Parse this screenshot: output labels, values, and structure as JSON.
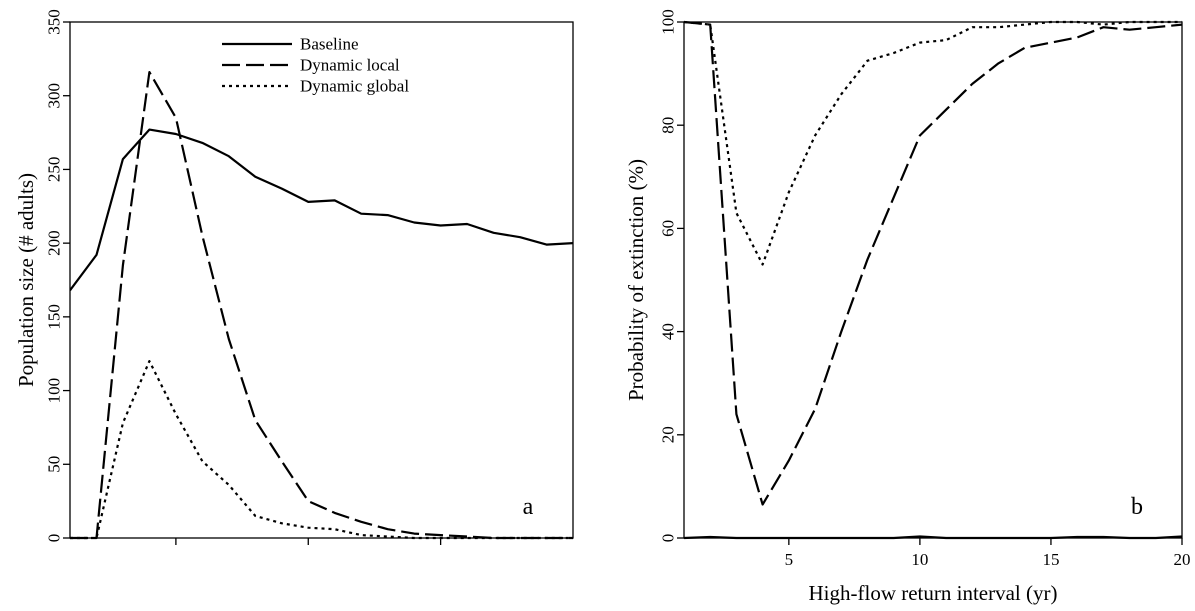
{
  "chart_data": [
    {
      "type": "line",
      "panel_label": "a",
      "xlabel": "",
      "ylabel": "Population size (# adults)",
      "ylim": [
        0,
        350
      ],
      "yticks": [
        0,
        50,
        100,
        150,
        200,
        250,
        300,
        350
      ],
      "xlim": [
        1,
        20
      ],
      "xticks": [
        5,
        10,
        15
      ],
      "xticklabels_shown": false,
      "legend": {
        "position": "top-center",
        "entries": [
          "Baseline",
          "Dynamic local",
          "Dynamic global"
        ]
      },
      "x": [
        1,
        2,
        3,
        4,
        5,
        6,
        7,
        8,
        9,
        10,
        11,
        12,
        13,
        14,
        15,
        16,
        17,
        18,
        19,
        20
      ],
      "series": [
        {
          "name": "Baseline",
          "style": "solid",
          "values": [
            168,
            192,
            257,
            277,
            274,
            268,
            259,
            245,
            237,
            228,
            229,
            220,
            219,
            214,
            212,
            213,
            207,
            204,
            199,
            200
          ]
        },
        {
          "name": "Dynamic local",
          "style": "dashed",
          "values": [
            0,
            0,
            185,
            316,
            285,
            205,
            135,
            80,
            52,
            25,
            17,
            11,
            6,
            3,
            2,
            1,
            0,
            0,
            0,
            0
          ]
        },
        {
          "name": "Dynamic global",
          "style": "dotted",
          "values": [
            0,
            0,
            78,
            120,
            84,
            52,
            36,
            15,
            10,
            7,
            6,
            2,
            1,
            0,
            0,
            0,
            0,
            0,
            0,
            0
          ]
        }
      ]
    },
    {
      "type": "line",
      "panel_label": "b",
      "xlabel": "High-flow return interval (yr)",
      "ylabel": "Probability of extinction (%)",
      "ylim": [
        0,
        100
      ],
      "yticks": [
        0,
        20,
        40,
        60,
        80,
        100
      ],
      "xlim": [
        1,
        20
      ],
      "xticks": [
        5,
        10,
        15,
        20
      ],
      "x": [
        1,
        2,
        3,
        4,
        5,
        6,
        7,
        8,
        9,
        10,
        11,
        12,
        13,
        14,
        15,
        16,
        17,
        18,
        19,
        20
      ],
      "series": [
        {
          "name": "Baseline",
          "style": "solid",
          "values": [
            0,
            0.2,
            0,
            0,
            0,
            0,
            0,
            0,
            0,
            0.3,
            0,
            0,
            0,
            0,
            0,
            0.2,
            0.2,
            0,
            0,
            0.3
          ]
        },
        {
          "name": "Dynamic local",
          "style": "dashed",
          "values": [
            100,
            99.5,
            24,
            6.5,
            15,
            25,
            40,
            54,
            66,
            78,
            83,
            88,
            92,
            95,
            96,
            97,
            99,
            98.5,
            99,
            99.5
          ]
        },
        {
          "name": "Dynamic global",
          "style": "dotted",
          "values": [
            100,
            99.5,
            63,
            53,
            67,
            78,
            86,
            92.5,
            94,
            96,
            96.5,
            99,
            99,
            99.5,
            100,
            100,
            99.5,
            100,
            100,
            100
          ]
        }
      ]
    }
  ]
}
